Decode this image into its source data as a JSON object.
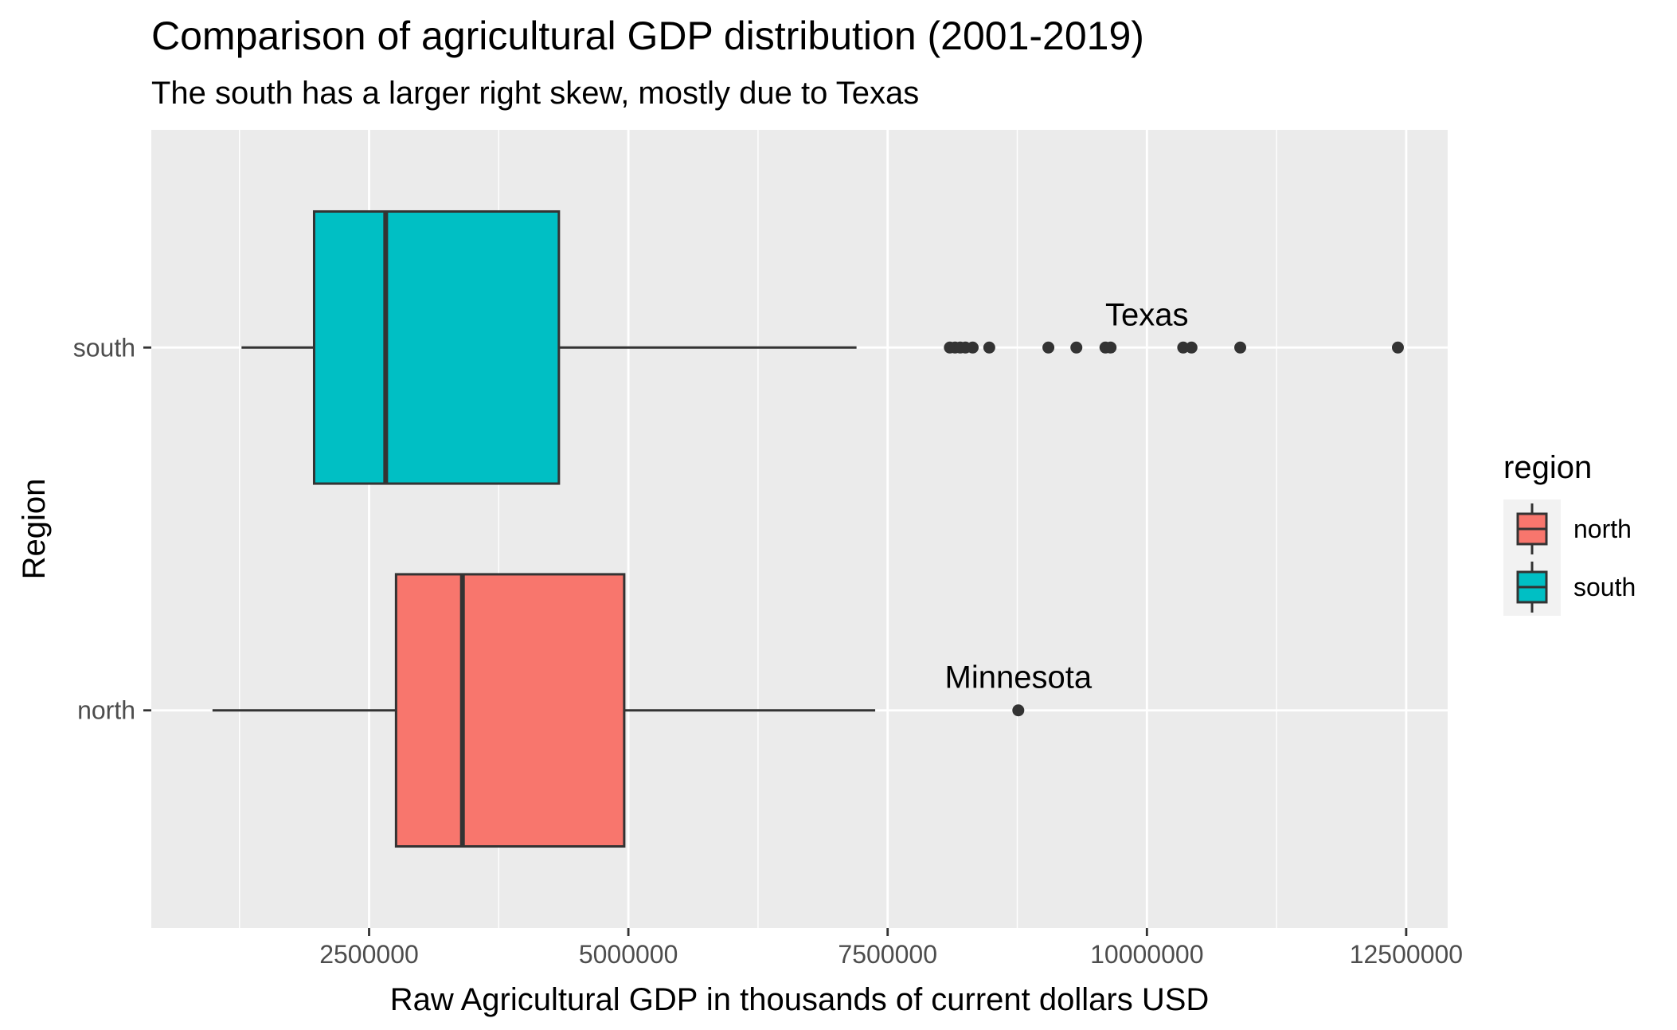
{
  "chart_data": {
    "type": "boxplot",
    "title": "Comparison of agricultural GDP distribution (2001-2019)",
    "subtitle": "The south has a larger right skew, mostly due to Texas",
    "xlabel": "Raw Agricultural GDP in thousands of current dollars USD",
    "ylabel": "Region",
    "xlim": [
      400000,
      12900000
    ],
    "x_ticks": [
      2500000,
      5000000,
      7500000,
      10000000,
      12500000
    ],
    "x_tick_labels": [
      "2500000",
      "5000000",
      "7500000",
      "10000000",
      "12500000"
    ],
    "categories": [
      "north",
      "south"
    ],
    "grid": true,
    "legend": {
      "title": "region",
      "position": "right",
      "entries": [
        {
          "label": "north",
          "color": "#F8766D"
        },
        {
          "label": "south",
          "color": "#00BFC4"
        }
      ]
    },
    "series": [
      {
        "category": "south",
        "color": "#00BFC4",
        "whisker_low": 1270000,
        "q1": 1970000,
        "median": 2660000,
        "q3": 4330000,
        "whisker_high": 7200000,
        "outliers": [
          8100000,
          8150000,
          8200000,
          8250000,
          8320000,
          8480000,
          9050000,
          9320000,
          9600000,
          9650000,
          10350000,
          10430000,
          10900000,
          12420000
        ]
      },
      {
        "category": "north",
        "color": "#F8766D",
        "whisker_low": 990000,
        "q1": 2760000,
        "median": 3400000,
        "q3": 4960000,
        "whisker_high": 7380000,
        "outliers": [
          8760000
        ]
      }
    ],
    "annotations": [
      {
        "text": "Texas",
        "x": 10000000,
        "category": "south"
      },
      {
        "text": "Minnesota",
        "x": 8760000,
        "category": "north"
      }
    ]
  }
}
